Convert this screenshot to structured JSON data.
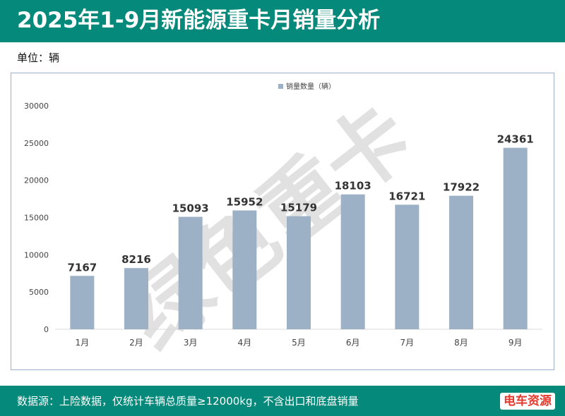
{
  "header": {
    "title": "2025年1-9月新能源重卡月销量分析"
  },
  "unit_label": "单位：辆",
  "footer": {
    "source": "数据源：上险数据，仅统计车辆总质量≥12000kg，不含出口和底盘销量",
    "logo": "电车资源"
  },
  "watermark": "绿色重卡",
  "colors": {
    "brand": "#05897a",
    "bar": "#9cb1c6",
    "label": "#333333"
  },
  "chart_data": {
    "type": "bar",
    "categories": [
      "1月",
      "2月",
      "3月",
      "4月",
      "5月",
      "6月",
      "7月",
      "8月",
      "9月"
    ],
    "series": [
      {
        "name": "销量数量（辆）",
        "values": [
          7167,
          8216,
          15093,
          15952,
          15179,
          18103,
          16721,
          17922,
          24361
        ]
      }
    ],
    "title": "",
    "xlabel": "",
    "ylabel": "",
    "ylim": [
      0,
      30000
    ],
    "yticks": [
      0,
      5000,
      10000,
      15000,
      20000,
      25000,
      30000
    ],
    "grid": false,
    "legend": "top-center",
    "data_labels": true
  }
}
